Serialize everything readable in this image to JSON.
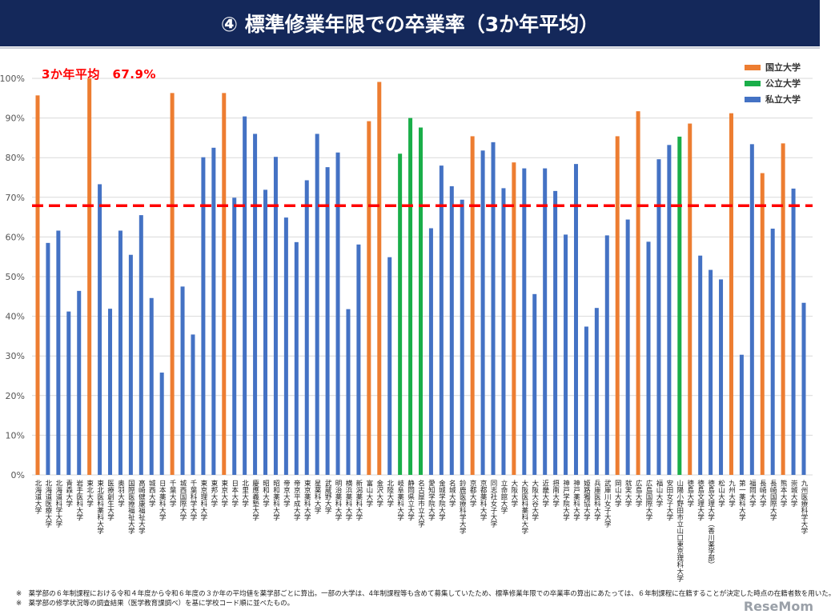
{
  "header": {
    "title": "④ 標準修業年限での卒業率（3か年平均）"
  },
  "chart_data": {
    "type": "bar",
    "title": "④ 標準修業年限での卒業率（3か年平均）",
    "ylim": [
      0,
      100
    ],
    "yticks": [
      "0%",
      "10%",
      "20%",
      "30%",
      "40%",
      "50%",
      "60%",
      "70%",
      "80%",
      "90%",
      "100%"
    ],
    "grid": true,
    "legend_position": "top-right",
    "legend": [
      {
        "key": "national",
        "name": "国立大学",
        "color": "#ed7d31"
      },
      {
        "key": "public",
        "name": "公立大学",
        "color": "#1aae49"
      },
      {
        "key": "private",
        "name": "私立大学",
        "color": "#4472c4"
      }
    ],
    "average": {
      "label": "3か年平均　67.9%",
      "value": 67.9,
      "color": "#ff0000"
    },
    "categories": [
      "北海道大学",
      "北海道医療大学",
      "北海道科学大学",
      "青森大学",
      "岩手医科大学",
      "東北大学",
      "東北医科薬科大学",
      "医療創生大学",
      "奥羽大学",
      "国際医療福祉大学",
      "高崎健康福祉大学",
      "城西大学",
      "日本薬科大学",
      "千葉大学",
      "城西国際大学",
      "千葉科学大学",
      "東京理科大学",
      "東邦大学",
      "東京大学",
      "日本大学",
      "北里大学",
      "慶應義塾大学",
      "昭和大学",
      "昭和薬科大学",
      "帝京大学",
      "帝京平成大学",
      "東京薬科大学",
      "星薬科大学",
      "武蔵野大学",
      "明治薬科大学",
      "横浜薬科大学",
      "新潟薬科大学",
      "富山大学",
      "金沢大学",
      "北陸大学",
      "岐阜薬科大学",
      "静岡県立大学",
      "名古屋市立大学",
      "愛知学院大学",
      "金城学院大学",
      "名城大学",
      "鈴鹿医療科学大学",
      "京都大学",
      "京都薬科大学",
      "同志社女子大学",
      "立命館大学",
      "大阪大学",
      "大阪医科薬科大学",
      "大阪大谷大学",
      "近畿大学",
      "摂南大学",
      "神戸学院大学",
      "神戸薬科大学",
      "姫路獨協大学",
      "兵庫医科大学",
      "武庫川女子大学",
      "岡山大学",
      "就実大学",
      "広島大学",
      "広島国際大学",
      "福山大学",
      "安田女子大学",
      "山陽小野田市立山口東京理科大学",
      "徳島大学",
      "徳島文理大学",
      "徳島文理大学（香川薬学部）",
      "松山大学",
      "九州大学",
      "第一薬科大学",
      "福岡大学",
      "長崎大学",
      "長崎国際大学",
      "熊本大学",
      "崇城大学",
      "九州医療科学大学"
    ],
    "types": [
      "national",
      "private",
      "private",
      "private",
      "private",
      "national",
      "private",
      "private",
      "private",
      "private",
      "private",
      "private",
      "private",
      "national",
      "private",
      "private",
      "private",
      "private",
      "national",
      "private",
      "private",
      "private",
      "private",
      "private",
      "private",
      "private",
      "private",
      "private",
      "private",
      "private",
      "private",
      "private",
      "national",
      "national",
      "private",
      "public",
      "public",
      "public",
      "private",
      "private",
      "private",
      "private",
      "national",
      "private",
      "private",
      "private",
      "national",
      "private",
      "private",
      "private",
      "private",
      "private",
      "private",
      "private",
      "private",
      "private",
      "national",
      "private",
      "national",
      "private",
      "private",
      "private",
      "public",
      "national",
      "private",
      "private",
      "private",
      "national",
      "private",
      "private",
      "national",
      "private",
      "national",
      "private",
      "private"
    ],
    "values": [
      95.7,
      58.5,
      61.6,
      41.2,
      46.4,
      100.0,
      73.3,
      41.9,
      61.6,
      55.5,
      65.5,
      44.6,
      25.8,
      96.3,
      47.5,
      35.4,
      80.1,
      82.5,
      96.3,
      69.9,
      90.4,
      86.0,
      71.9,
      80.2,
      64.9,
      58.7,
      74.3,
      86.0,
      77.6,
      81.3,
      41.8,
      58.1,
      89.2,
      99.1,
      54.9,
      81.0,
      90.0,
      87.6,
      62.2,
      78.0,
      72.8,
      69.4,
      85.4,
      81.8,
      83.9,
      72.3,
      78.8,
      77.3,
      45.6,
      77.3,
      71.6,
      60.6,
      78.4,
      37.4,
      42.1,
      60.4,
      85.4,
      64.4,
      91.7,
      58.8,
      79.6,
      83.2,
      85.3,
      88.6,
      55.3,
      51.7,
      49.3,
      91.2,
      30.3,
      83.4,
      76.1,
      62.1,
      83.6,
      72.2,
      43.4
    ]
  },
  "notes": [
    "※　薬学部の６年制課程における令和４年度から令和６年度の３か年の平均値を薬学部ごとに算出。一部の大学は、4年制課程等も含めて募集していたため、標準修業年限での卒業率の算出にあたっては、６年制課程に在籍することが決定した時点の在籍者数を用いた。",
    "※　薬学部の修学状況等の調査結果（医学教育課調べ）を基に学校コード順に並べたもの。"
  ],
  "watermark": "ReseMom"
}
